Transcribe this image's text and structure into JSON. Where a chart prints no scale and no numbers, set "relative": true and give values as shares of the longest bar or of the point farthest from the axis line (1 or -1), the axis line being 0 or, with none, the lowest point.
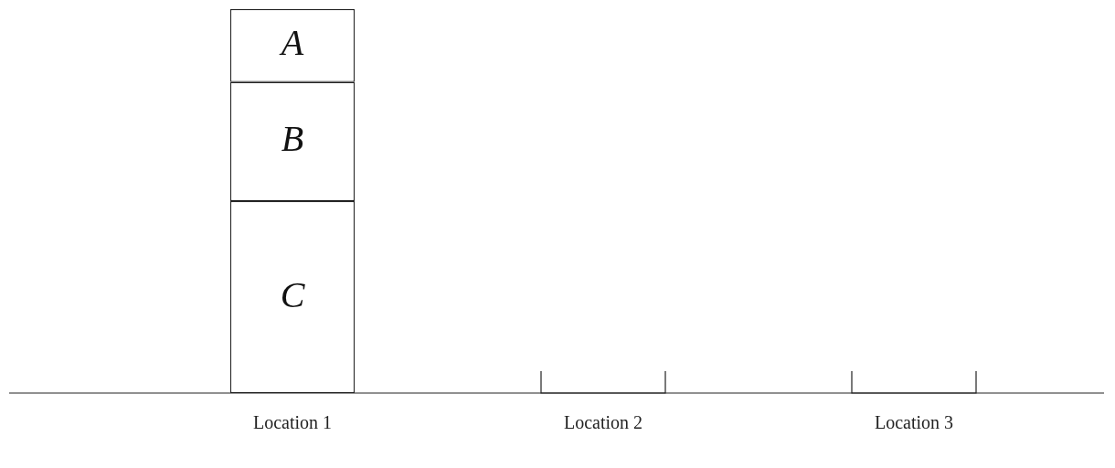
{
  "chart_data": {
    "type": "bar",
    "stacked": true,
    "relative": true,
    "categories": [
      "Location 1",
      "Location 2",
      "Location 3"
    ],
    "legend": false,
    "grid": false,
    "series": [
      {
        "name": "C",
        "color": "#ffffff",
        "values": [
          0.5,
          0,
          0
        ]
      },
      {
        "name": "B",
        "color": "#ffffff",
        "values": [
          0.31,
          0,
          0
        ]
      },
      {
        "name": "A",
        "color": "#ffffff",
        "values": [
          0.19,
          0,
          0
        ]
      }
    ]
  }
}
